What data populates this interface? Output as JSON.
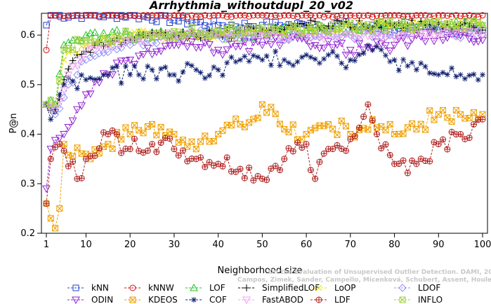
{
  "chart_data": {
    "type": "line",
    "title": "Arrhythmia_withoutdupl_20_v02",
    "xlabel": "Neighborhood size",
    "ylabel": "P@n",
    "xlim": [
      1,
      100
    ],
    "ylim": [
      0.2,
      0.65
    ],
    "xticks": [
      1,
      10,
      20,
      30,
      40,
      50,
      60,
      70,
      80,
      90,
      100
    ],
    "yticks": [
      0.2,
      0.3,
      0.4,
      0.5,
      0.6
    ],
    "grid": false,
    "legend_position": "bottom",
    "watermark": [
      "Campos, Zimek, Sander, Campello, Micenková, Schubert, Assent, Houle",
      "On the Evaluation of Unsupervised Outlier Detection. DAMI, 2015."
    ],
    "series": [
      {
        "name": "kNN",
        "color": "#1f3fcf",
        "marker": "square",
        "anchors": [
          [
            1,
            0.62
          ],
          [
            2,
            0.64
          ],
          [
            10,
            0.64
          ],
          [
            20,
            0.64
          ],
          [
            30,
            0.63
          ],
          [
            40,
            0.62
          ],
          [
            50,
            0.62
          ],
          [
            60,
            0.62
          ],
          [
            70,
            0.62
          ],
          [
            80,
            0.61
          ],
          [
            90,
            0.61
          ],
          [
            100,
            0.61
          ]
        ],
        "wiggle": 0.008
      },
      {
        "name": "kNNW",
        "color": "#d01010",
        "marker": "circle",
        "anchors": [
          [
            1,
            0.57
          ],
          [
            2,
            0.64
          ],
          [
            10,
            0.64
          ],
          [
            30,
            0.64
          ],
          [
            50,
            0.64
          ],
          [
            70,
            0.64
          ],
          [
            90,
            0.64
          ],
          [
            100,
            0.64
          ]
        ],
        "wiggle": 0.004
      },
      {
        "name": "LOF",
        "color": "#20c020",
        "marker": "triangle-up",
        "anchors": [
          [
            1,
            0.46
          ],
          [
            3,
            0.46
          ],
          [
            5,
            0.58
          ],
          [
            10,
            0.6
          ],
          [
            20,
            0.6
          ],
          [
            40,
            0.6
          ],
          [
            60,
            0.61
          ],
          [
            80,
            0.62
          ],
          [
            100,
            0.62
          ]
        ],
        "wiggle": 0.01
      },
      {
        "name": "SimplifiedLOF",
        "color": "#000000",
        "marker": "plus",
        "anchors": [
          [
            1,
            0.46
          ],
          [
            3,
            0.45
          ],
          [
            5,
            0.51
          ],
          [
            8,
            0.56
          ],
          [
            12,
            0.58
          ],
          [
            20,
            0.59
          ],
          [
            30,
            0.6
          ],
          [
            40,
            0.6
          ],
          [
            50,
            0.61
          ],
          [
            60,
            0.62
          ],
          [
            80,
            0.62
          ],
          [
            95,
            0.62
          ],
          [
            100,
            0.61
          ]
        ],
        "wiggle": 0.01
      },
      {
        "name": "LoOP",
        "color": "#e8e000",
        "marker": "x",
        "anchors": [
          [
            1,
            0.46
          ],
          [
            3,
            0.46
          ],
          [
            5,
            0.55
          ],
          [
            10,
            0.58
          ],
          [
            20,
            0.6
          ],
          [
            40,
            0.6
          ],
          [
            60,
            0.61
          ],
          [
            80,
            0.62
          ],
          [
            100,
            0.62
          ]
        ],
        "wiggle": 0.01
      },
      {
        "name": "LDOF",
        "color": "#9090f0",
        "marker": "diamond",
        "anchors": [
          [
            1,
            0.46
          ],
          [
            3,
            0.44
          ],
          [
            6,
            0.5
          ],
          [
            10,
            0.55
          ],
          [
            20,
            0.58
          ],
          [
            30,
            0.6
          ],
          [
            50,
            0.6
          ],
          [
            70,
            0.6
          ],
          [
            85,
            0.61
          ],
          [
            100,
            0.6
          ]
        ],
        "wiggle": 0.01
      },
      {
        "name": "ODIN",
        "color": "#9020d0",
        "marker": "triangle-down",
        "anchors": [
          [
            1,
            0.29
          ],
          [
            2,
            0.37
          ],
          [
            5,
            0.4
          ],
          [
            8,
            0.45
          ],
          [
            10,
            0.48
          ],
          [
            15,
            0.52
          ],
          [
            20,
            0.55
          ],
          [
            30,
            0.58
          ],
          [
            40,
            0.57
          ],
          [
            50,
            0.58
          ],
          [
            60,
            0.59
          ],
          [
            70,
            0.57
          ],
          [
            80,
            0.58
          ],
          [
            90,
            0.6
          ],
          [
            100,
            0.59
          ]
        ],
        "wiggle": 0.012
      },
      {
        "name": "KDEOS",
        "color": "#f0a000",
        "marker": "square-x",
        "anchors": [
          [
            1,
            0.26
          ],
          [
            2,
            0.23
          ],
          [
            3,
            0.21
          ],
          [
            4,
            0.25
          ],
          [
            5,
            0.38
          ],
          [
            10,
            0.36
          ],
          [
            15,
            0.38
          ],
          [
            20,
            0.4
          ],
          [
            25,
            0.42
          ],
          [
            30,
            0.4
          ],
          [
            35,
            0.37
          ],
          [
            40,
            0.4
          ],
          [
            45,
            0.42
          ],
          [
            50,
            0.46
          ],
          [
            55,
            0.41
          ],
          [
            60,
            0.4
          ],
          [
            65,
            0.42
          ],
          [
            70,
            0.4
          ],
          [
            75,
            0.43
          ],
          [
            80,
            0.4
          ],
          [
            85,
            0.41
          ],
          [
            90,
            0.44
          ],
          [
            95,
            0.44
          ],
          [
            100,
            0.44
          ]
        ],
        "wiggle": 0.02
      },
      {
        "name": "COF",
        "color": "#102070",
        "marker": "star",
        "anchors": [
          [
            1,
            0.46
          ],
          [
            2,
            0.43
          ],
          [
            5,
            0.5
          ],
          [
            10,
            0.51
          ],
          [
            15,
            0.52
          ],
          [
            20,
            0.52
          ],
          [
            25,
            0.53
          ],
          [
            30,
            0.52
          ],
          [
            35,
            0.53
          ],
          [
            40,
            0.53
          ],
          [
            45,
            0.55
          ],
          [
            50,
            0.55
          ],
          [
            55,
            0.55
          ],
          [
            60,
            0.56
          ],
          [
            65,
            0.56
          ],
          [
            70,
            0.55
          ],
          [
            75,
            0.57
          ],
          [
            80,
            0.55
          ],
          [
            85,
            0.53
          ],
          [
            90,
            0.52
          ],
          [
            95,
            0.52
          ],
          [
            100,
            0.52
          ]
        ],
        "wiggle": 0.018
      },
      {
        "name": "FastABOD",
        "color": "#f0a0f0",
        "marker": "triangle-down",
        "anchors": [
          [
            1,
            0.46
          ],
          [
            3,
            0.45
          ],
          [
            6,
            0.52
          ],
          [
            10,
            0.57
          ],
          [
            15,
            0.58
          ],
          [
            20,
            0.59
          ],
          [
            30,
            0.6
          ],
          [
            50,
            0.6
          ],
          [
            70,
            0.6
          ],
          [
            90,
            0.6
          ],
          [
            100,
            0.6
          ]
        ],
        "wiggle": 0.008
      },
      {
        "name": "LDF",
        "color": "#b02020",
        "marker": "circle-plus",
        "anchors": [
          [
            1,
            0.26
          ],
          [
            2,
            0.35
          ],
          [
            4,
            0.38
          ],
          [
            8,
            0.31
          ],
          [
            10,
            0.35
          ],
          [
            15,
            0.4
          ],
          [
            20,
            0.37
          ],
          [
            25,
            0.38
          ],
          [
            30,
            0.37
          ],
          [
            35,
            0.35
          ],
          [
            40,
            0.34
          ],
          [
            45,
            0.33
          ],
          [
            50,
            0.31
          ],
          [
            55,
            0.35
          ],
          [
            60,
            0.38
          ],
          [
            62,
            0.31
          ],
          [
            65,
            0.37
          ],
          [
            70,
            0.39
          ],
          [
            74,
            0.46
          ],
          [
            76,
            0.4
          ],
          [
            80,
            0.34
          ],
          [
            85,
            0.34
          ],
          [
            90,
            0.38
          ],
          [
            95,
            0.4
          ],
          [
            100,
            0.43
          ]
        ],
        "wiggle": 0.02
      },
      {
        "name": "INFLO",
        "color": "#a0d040",
        "marker": "square-x",
        "anchors": [
          [
            1,
            0.46
          ],
          [
            3,
            0.46
          ],
          [
            5,
            0.57
          ],
          [
            10,
            0.59
          ],
          [
            20,
            0.6
          ],
          [
            40,
            0.61
          ],
          [
            60,
            0.61
          ],
          [
            80,
            0.62
          ],
          [
            100,
            0.62
          ]
        ],
        "wiggle": 0.01
      }
    ]
  }
}
